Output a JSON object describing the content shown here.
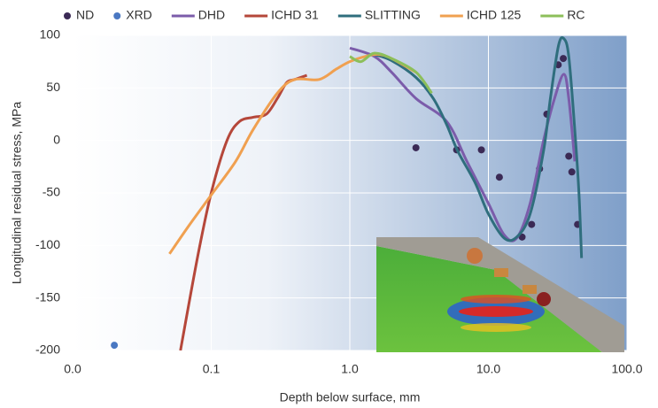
{
  "chart_data": {
    "type": "line",
    "xlabel": "Depth below surface, mm",
    "ylabel": "Longitudinal residual stress, MPa",
    "xscale": "log",
    "xlim": [
      0.01,
      100
    ],
    "xticks": [
      {
        "value": 0.01,
        "label": "0.0"
      },
      {
        "value": 0.1,
        "label": "0.1"
      },
      {
        "value": 1,
        "label": "1.0"
      },
      {
        "value": 10,
        "label": "10.0"
      },
      {
        "value": 100,
        "label": "100.0"
      }
    ],
    "ylim": [
      -200,
      100
    ],
    "yticks": [
      -200,
      -150,
      -100,
      -50,
      0,
      50,
      100
    ],
    "grid": true,
    "legend": "top",
    "series": [
      {
        "name": "ND",
        "color": "#3b2a55",
        "style": "markers",
        "x": [
          3.0,
          5.9,
          8.9,
          12,
          17.5,
          20.5,
          23.4,
          26.4,
          31.9,
          34.7,
          38,
          40,
          44
        ],
        "values": [
          -7,
          -9,
          -9,
          -35,
          -92,
          -80,
          -27,
          25,
          72,
          78,
          -15,
          -30,
          -80
        ]
      },
      {
        "name": "XRD",
        "color": "#4a78c2",
        "style": "markers",
        "x": [
          0.02
        ],
        "values": [
          -195
        ]
      },
      {
        "name": "DHD",
        "color": "#7b5caa",
        "style": "line",
        "x": [
          1.0,
          1.5,
          2,
          3,
          5,
          7,
          10,
          13,
          16,
          20,
          25,
          30,
          35,
          38,
          42
        ],
        "values": [
          88,
          80,
          65,
          40,
          18,
          -20,
          -60,
          -90,
          -93,
          -60,
          0,
          40,
          63,
          40,
          -20
        ]
      },
      {
        "name": "ICHD 31",
        "color": "#b5473a",
        "style": "line",
        "x": [
          0.06,
          0.08,
          0.1,
          0.13,
          0.16,
          0.2,
          0.25,
          0.3,
          0.35,
          0.4,
          0.49
        ],
        "values": [
          -200,
          -110,
          -50,
          0,
          18,
          22,
          25,
          40,
          55,
          58,
          62
        ]
      },
      {
        "name": "SLITTING",
        "color": "#2f6e7d",
        "style": "line",
        "x": [
          1.5,
          2,
          3,
          4,
          5,
          6,
          8,
          10,
          13,
          16,
          20,
          25,
          28,
          32,
          35,
          38,
          42,
          45,
          47
        ],
        "values": [
          82,
          76,
          60,
          40,
          15,
          -10,
          -40,
          -70,
          -93,
          -92,
          -70,
          -10,
          40,
          90,
          97,
          80,
          10,
          -50,
          -112
        ]
      },
      {
        "name": "ICHD 125",
        "color": "#f0a050",
        "style": "line",
        "x": [
          0.05,
          0.07,
          0.1,
          0.15,
          0.2,
          0.3,
          0.4,
          0.6,
          0.8,
          1.0,
          1.3,
          1.6,
          2,
          3
        ],
        "values": [
          -108,
          -80,
          -52,
          -20,
          10,
          45,
          58,
          58,
          68,
          75,
          80,
          82,
          78,
          65
        ]
      },
      {
        "name": "RC",
        "color": "#8cbf5a",
        "style": "line",
        "x": [
          1.0,
          1.2,
          1.5,
          2,
          3,
          3.9
        ],
        "values": [
          80,
          75,
          83,
          78,
          65,
          45
        ]
      }
    ]
  }
}
